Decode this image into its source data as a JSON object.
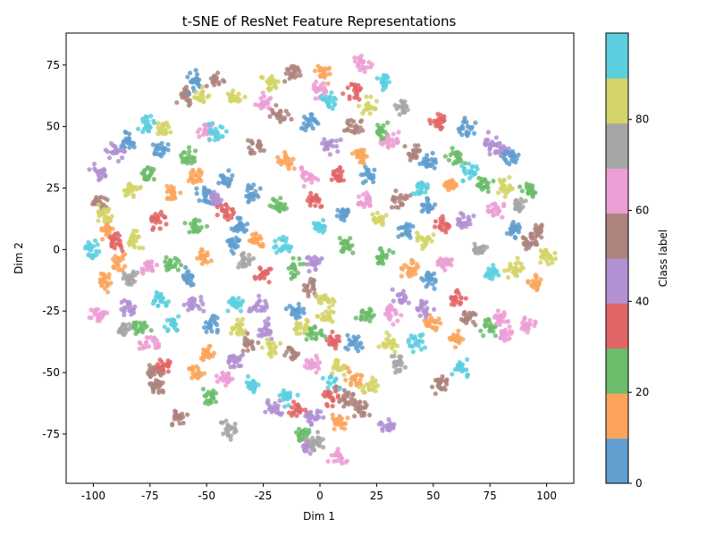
{
  "chart_data": {
    "type": "scatter",
    "title": "t-SNE of ResNet Feature Representations",
    "xlabel": "Dim 1",
    "ylabel": "Dim 2",
    "xlim": [
      -112,
      112
    ],
    "ylim": [
      -95,
      88
    ],
    "xticks": [
      -100,
      -75,
      -50,
      -25,
      0,
      25,
      50,
      75,
      100
    ],
    "yticks": [
      -75,
      -50,
      -25,
      0,
      25,
      50,
      75
    ],
    "grid": false,
    "colormap": "tab10",
    "colorbar": {
      "label": "Class label",
      "range": [
        0,
        99
      ],
      "ticks": [
        0,
        20,
        40,
        60,
        80
      ],
      "colors": [
        "#5f9ecf",
        "#fca45c",
        "#6bbc6b",
        "#e06666",
        "#b291d2",
        "#ad847c",
        "#ec9fd5",
        "#a6a6a6",
        "#d3d367",
        "#5ccfdf"
      ]
    },
    "clusters": [
      {
        "x": -97,
        "y": 31,
        "c": 4
      },
      {
        "x": -98,
        "y": 19,
        "c": 5
      },
      {
        "x": -100,
        "y": 0,
        "c": 9
      },
      {
        "x": -96,
        "y": -13,
        "c": 1
      },
      {
        "x": -97,
        "y": -26,
        "c": 6
      },
      {
        "x": -94,
        "y": 8,
        "c": 1
      },
      {
        "x": -90,
        "y": 3,
        "c": 3
      },
      {
        "x": -88,
        "y": -6,
        "c": 1
      },
      {
        "x": -90,
        "y": 40,
        "c": 4
      },
      {
        "x": -95,
        "y": 14,
        "c": 8
      },
      {
        "x": -85,
        "y": 44,
        "c": 0
      },
      {
        "x": -83,
        "y": 24,
        "c": 8
      },
      {
        "x": -82,
        "y": 4,
        "c": 8
      },
      {
        "x": -85,
        "y": -12,
        "c": 7
      },
      {
        "x": -85,
        "y": -24,
        "c": 4
      },
      {
        "x": -87,
        "y": -33,
        "c": 7
      },
      {
        "x": -79,
        "y": -32,
        "c": 2
      },
      {
        "x": -76,
        "y": 51,
        "c": 9
      },
      {
        "x": -76,
        "y": 31,
        "c": 2
      },
      {
        "x": -72,
        "y": 12,
        "c": 3
      },
      {
        "x": -76,
        "y": -7,
        "c": 6
      },
      {
        "x": -70,
        "y": -20,
        "c": 9
      },
      {
        "x": -75,
        "y": -38,
        "c": 6
      },
      {
        "x": -73,
        "y": -50,
        "c": 5
      },
      {
        "x": -68,
        "y": -47,
        "c": 3
      },
      {
        "x": -72,
        "y": -56,
        "c": 5
      },
      {
        "x": -69,
        "y": 49,
        "c": 8
      },
      {
        "x": -70,
        "y": 40,
        "c": 0
      },
      {
        "x": -65,
        "y": 23,
        "c": 1
      },
      {
        "x": -66,
        "y": -6,
        "c": 2
      },
      {
        "x": -65,
        "y": -30,
        "c": 9
      },
      {
        "x": -62,
        "y": -68,
        "c": 5
      },
      {
        "x": -60,
        "y": 63,
        "c": 5
      },
      {
        "x": -55,
        "y": 68,
        "c": 0
      },
      {
        "x": -52,
        "y": 62,
        "c": 8
      },
      {
        "x": -46,
        "y": 69,
        "c": 5
      },
      {
        "x": -50,
        "y": 48,
        "c": 6
      },
      {
        "x": -45,
        "y": 48,
        "c": 9
      },
      {
        "x": -58,
        "y": 38,
        "c": 2
      },
      {
        "x": -55,
        "y": 30,
        "c": 1
      },
      {
        "x": -50,
        "y": 22,
        "c": 0
      },
      {
        "x": -46,
        "y": 20,
        "c": 4
      },
      {
        "x": -42,
        "y": 28,
        "c": 0
      },
      {
        "x": -42,
        "y": 15,
        "c": 3
      },
      {
        "x": -55,
        "y": 10,
        "c": 2
      },
      {
        "x": -52,
        "y": -3,
        "c": 1
      },
      {
        "x": -58,
        "y": -12,
        "c": 0
      },
      {
        "x": -55,
        "y": -22,
        "c": 4
      },
      {
        "x": -48,
        "y": -30,
        "c": 0
      },
      {
        "x": -50,
        "y": -42,
        "c": 1
      },
      {
        "x": -55,
        "y": -50,
        "c": 1
      },
      {
        "x": -48,
        "y": -60,
        "c": 2
      },
      {
        "x": -42,
        "y": -52,
        "c": 6
      },
      {
        "x": -40,
        "y": -73,
        "c": 7
      },
      {
        "x": -38,
        "y": 62,
        "c": 8
      },
      {
        "x": -38,
        "y": 2,
        "c": 0
      },
      {
        "x": -35,
        "y": 10,
        "c": 0
      },
      {
        "x": -33,
        "y": -4,
        "c": 7
      },
      {
        "x": -38,
        "y": -22,
        "c": 9
      },
      {
        "x": -36,
        "y": -32,
        "c": 8
      },
      {
        "x": -37,
        "y": -45,
        "c": 4
      },
      {
        "x": -32,
        "y": -38,
        "c": 5
      },
      {
        "x": -30,
        "y": -55,
        "c": 9
      },
      {
        "x": -30,
        "y": 23,
        "c": 0
      },
      {
        "x": -28,
        "y": 42,
        "c": 5
      },
      {
        "x": -25,
        "y": 60,
        "c": 6
      },
      {
        "x": -22,
        "y": 68,
        "c": 8
      },
      {
        "x": -28,
        "y": 4,
        "c": 1
      },
      {
        "x": -25,
        "y": -10,
        "c": 3
      },
      {
        "x": -27,
        "y": -23,
        "c": 4
      },
      {
        "x": -24,
        "y": -33,
        "c": 4
      },
      {
        "x": -22,
        "y": -40,
        "c": 8
      },
      {
        "x": -20,
        "y": -65,
        "c": 4
      },
      {
        "x": -15,
        "y": -60,
        "c": 9
      },
      {
        "x": -18,
        "y": 55,
        "c": 5
      },
      {
        "x": -12,
        "y": 72,
        "c": 5
      },
      {
        "x": -15,
        "y": 36,
        "c": 1
      },
      {
        "x": -18,
        "y": 18,
        "c": 2
      },
      {
        "x": -16,
        "y": 2,
        "c": 9
      },
      {
        "x": -12,
        "y": -8,
        "c": 2
      },
      {
        "x": -10,
        "y": -25,
        "c": 0
      },
      {
        "x": -8,
        "y": -31,
        "c": 8
      },
      {
        "x": -12,
        "y": -42,
        "c": 5
      },
      {
        "x": -10,
        "y": -65,
        "c": 3
      },
      {
        "x": -8,
        "y": -75,
        "c": 2
      },
      {
        "x": -5,
        "y": -80,
        "c": 4
      },
      {
        "x": -2,
        "y": -78,
        "c": 7
      },
      {
        "x": -3,
        "y": -68,
        "c": 4
      },
      {
        "x": -5,
        "y": 52,
        "c": 0
      },
      {
        "x": -5,
        "y": 30,
        "c": 6
      },
      {
        "x": -2,
        "y": 20,
        "c": 3
      },
      {
        "x": 0,
        "y": 10,
        "c": 9
      },
      {
        "x": 0,
        "y": 65,
        "c": 6
      },
      {
        "x": 2,
        "y": 72,
        "c": 1
      },
      {
        "x": 4,
        "y": 60,
        "c": 9
      },
      {
        "x": -3,
        "y": -5,
        "c": 4
      },
      {
        "x": -3,
        "y": -15,
        "c": 5
      },
      {
        "x": -2,
        "y": -34,
        "c": 2
      },
      {
        "x": -3,
        "y": -46,
        "c": 6
      },
      {
        "x": 2,
        "y": -20,
        "c": 8
      },
      {
        "x": 3,
        "y": -27,
        "c": 8
      },
      {
        "x": 6,
        "y": -38,
        "c": 3
      },
      {
        "x": 8,
        "y": -48,
        "c": 8
      },
      {
        "x": 6,
        "y": -55,
        "c": 9
      },
      {
        "x": 5,
        "y": -60,
        "c": 3
      },
      {
        "x": 8,
        "y": -70,
        "c": 1
      },
      {
        "x": 8,
        "y": -84,
        "c": 6
      },
      {
        "x": 12,
        "y": -60,
        "c": 5
      },
      {
        "x": 15,
        "y": -52,
        "c": 1
      },
      {
        "x": 15,
        "y": -38,
        "c": 0
      },
      {
        "x": 18,
        "y": -65,
        "c": 5
      },
      {
        "x": 22,
        "y": -55,
        "c": 8
      },
      {
        "x": 20,
        "y": -27,
        "c": 2
      },
      {
        "x": 5,
        "y": 42,
        "c": 4
      },
      {
        "x": 8,
        "y": 30,
        "c": 3
      },
      {
        "x": 10,
        "y": 15,
        "c": 0
      },
      {
        "x": 12,
        "y": 2,
        "c": 2
      },
      {
        "x": 15,
        "y": 65,
        "c": 3
      },
      {
        "x": 18,
        "y": 76,
        "c": 6
      },
      {
        "x": 22,
        "y": 58,
        "c": 8
      },
      {
        "x": 15,
        "y": 50,
        "c": 5
      },
      {
        "x": 18,
        "y": 38,
        "c": 1
      },
      {
        "x": 22,
        "y": 30,
        "c": 0
      },
      {
        "x": 20,
        "y": 20,
        "c": 6
      },
      {
        "x": 28,
        "y": 69,
        "c": 9
      },
      {
        "x": 27,
        "y": 48,
        "c": 2
      },
      {
        "x": 31,
        "y": 44,
        "c": 6
      },
      {
        "x": 26,
        "y": 12,
        "c": 8
      },
      {
        "x": 28,
        "y": -3,
        "c": 2
      },
      {
        "x": 32,
        "y": -26,
        "c": 6
      },
      {
        "x": 30,
        "y": -38,
        "c": 8
      },
      {
        "x": 30,
        "y": -72,
        "c": 4
      },
      {
        "x": 36,
        "y": 58,
        "c": 7
      },
      {
        "x": 35,
        "y": 20,
        "c": 5
      },
      {
        "x": 38,
        "y": 8,
        "c": 0
      },
      {
        "x": 40,
        "y": -8,
        "c": 1
      },
      {
        "x": 36,
        "y": -20,
        "c": 4
      },
      {
        "x": 35,
        "y": -46,
        "c": 7
      },
      {
        "x": 42,
        "y": -38,
        "c": 9
      },
      {
        "x": 45,
        "y": 25,
        "c": 9
      },
      {
        "x": 42,
        "y": 40,
        "c": 5
      },
      {
        "x": 48,
        "y": 35,
        "c": 0
      },
      {
        "x": 48,
        "y": 18,
        "c": 0
      },
      {
        "x": 46,
        "y": 4,
        "c": 8
      },
      {
        "x": 48,
        "y": -12,
        "c": 0
      },
      {
        "x": 46,
        "y": -24,
        "c": 4
      },
      {
        "x": 50,
        "y": -30,
        "c": 1
      },
      {
        "x": 52,
        "y": 52,
        "c": 3
      },
      {
        "x": 54,
        "y": -55,
        "c": 5
      },
      {
        "x": 55,
        "y": -5,
        "c": 6
      },
      {
        "x": 55,
        "y": 10,
        "c": 3
      },
      {
        "x": 58,
        "y": 26,
        "c": 1
      },
      {
        "x": 60,
        "y": 38,
        "c": 2
      },
      {
        "x": 60,
        "y": -20,
        "c": 3
      },
      {
        "x": 60,
        "y": -36,
        "c": 1
      },
      {
        "x": 62,
        "y": -48,
        "c": 9
      },
      {
        "x": 65,
        "y": 50,
        "c": 0
      },
      {
        "x": 64,
        "y": 12,
        "c": 4
      },
      {
        "x": 66,
        "y": -28,
        "c": 5
      },
      {
        "x": 66,
        "y": 32,
        "c": 9
      },
      {
        "x": 70,
        "y": 0,
        "c": 7
      },
      {
        "x": 72,
        "y": 26,
        "c": 2
      },
      {
        "x": 74,
        "y": -32,
        "c": 2
      },
      {
        "x": 76,
        "y": 43,
        "c": 4
      },
      {
        "x": 76,
        "y": -10,
        "c": 9
      },
      {
        "x": 80,
        "y": 40,
        "c": 4
      },
      {
        "x": 82,
        "y": 26,
        "c": 8
      },
      {
        "x": 78,
        "y": 16,
        "c": 6
      },
      {
        "x": 80,
        "y": -28,
        "c": 6
      },
      {
        "x": 82,
        "y": -35,
        "c": 6
      },
      {
        "x": 84,
        "y": 38,
        "c": 0
      },
      {
        "x": 86,
        "y": 8,
        "c": 0
      },
      {
        "x": 86,
        "y": -8,
        "c": 8
      },
      {
        "x": 88,
        "y": 18,
        "c": 7
      },
      {
        "x": 92,
        "y": 24,
        "c": 2
      },
      {
        "x": 92,
        "y": -30,
        "c": 6
      },
      {
        "x": 93,
        "y": 3,
        "c": 5
      },
      {
        "x": 95,
        "y": -14,
        "c": 1
      },
      {
        "x": 100,
        "y": -3,
        "c": 8
      },
      {
        "x": 96,
        "y": 8,
        "c": 5
      }
    ]
  }
}
